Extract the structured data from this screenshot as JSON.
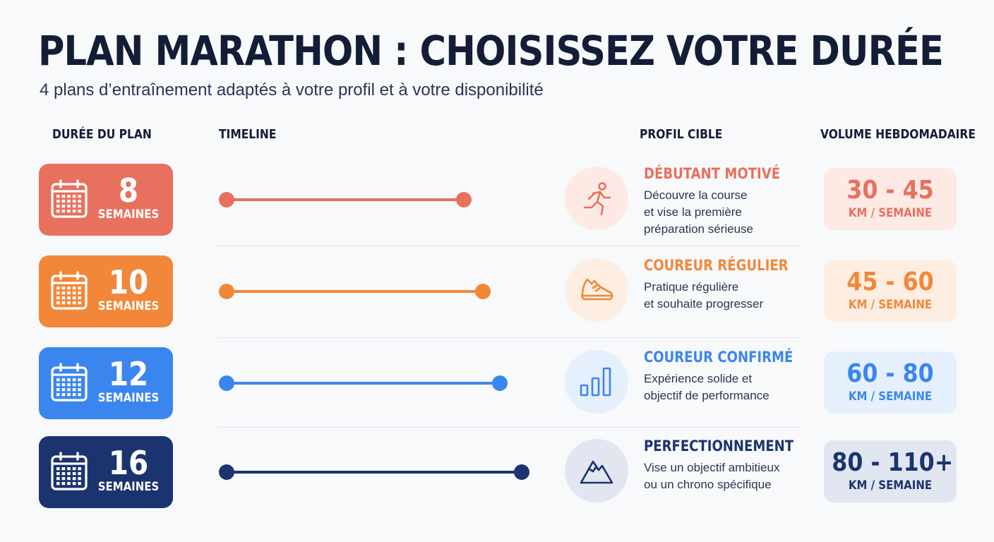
{
  "header": {
    "title": "PLAN MARATHON : CHOISISSEZ VOTRE DURÉE",
    "subtitle": "4 plans d’entraînement adaptés à votre profil et à votre disponibilité"
  },
  "columns": {
    "duration": "DURÉE DU PLAN",
    "timeline": "TIMELINE",
    "profile": "PROFIL CIBLE",
    "volume": "VOLUME HEBDOMADAIRE"
  },
  "plans": [
    {
      "weeks": "8",
      "weeks_unit": "SEMAINES",
      "profile_title": "DÉBUTANT MOTIVÉ",
      "profile_lines": [
        "Découvre la course",
        "et vise la première",
        "préparation sérieuse"
      ],
      "volume": "30 - 45",
      "volume_unit": "KM / SEMAINE",
      "icon": "runner-icon",
      "color": "#e8705e",
      "light": "#fdeae5",
      "text": "#e8705e"
    },
    {
      "weeks": "10",
      "weeks_unit": "SEMAINES",
      "profile_title": "COUREUR RÉGULIER",
      "profile_lines": [
        "Pratique régulière",
        "et souhaite progresser"
      ],
      "volume": "45 - 60",
      "volume_unit": "KM / SEMAINE",
      "icon": "running-shoe-icon",
      "color": "#f2873a",
      "light": "#fdeee1",
      "text": "#f2873a"
    },
    {
      "weeks": "12",
      "weeks_unit": "SEMAINES",
      "profile_title": "COUREUR CONFIRMÉ",
      "profile_lines": [
        "Expérience solide et",
        "objectif de performance"
      ],
      "volume": "60 - 80",
      "volume_unit": "KM / SEMAINE",
      "icon": "bar-chart-icon",
      "color": "#3b86ee",
      "light": "#e6effc",
      "text": "#3b86ee"
    },
    {
      "weeks": "16",
      "weeks_unit": "SEMAINES",
      "profile_title": "PERFECTIONNEMENT",
      "profile_lines": [
        "Vise un objectif ambitieux",
        "ou un chrono spécifique"
      ],
      "volume": "80 - 110+",
      "volume_unit": "KM / SEMAINE",
      "icon": "mountain-icon",
      "color": "#1b3470",
      "light": "#e2e6f1",
      "text": "#1b3470"
    }
  ]
}
